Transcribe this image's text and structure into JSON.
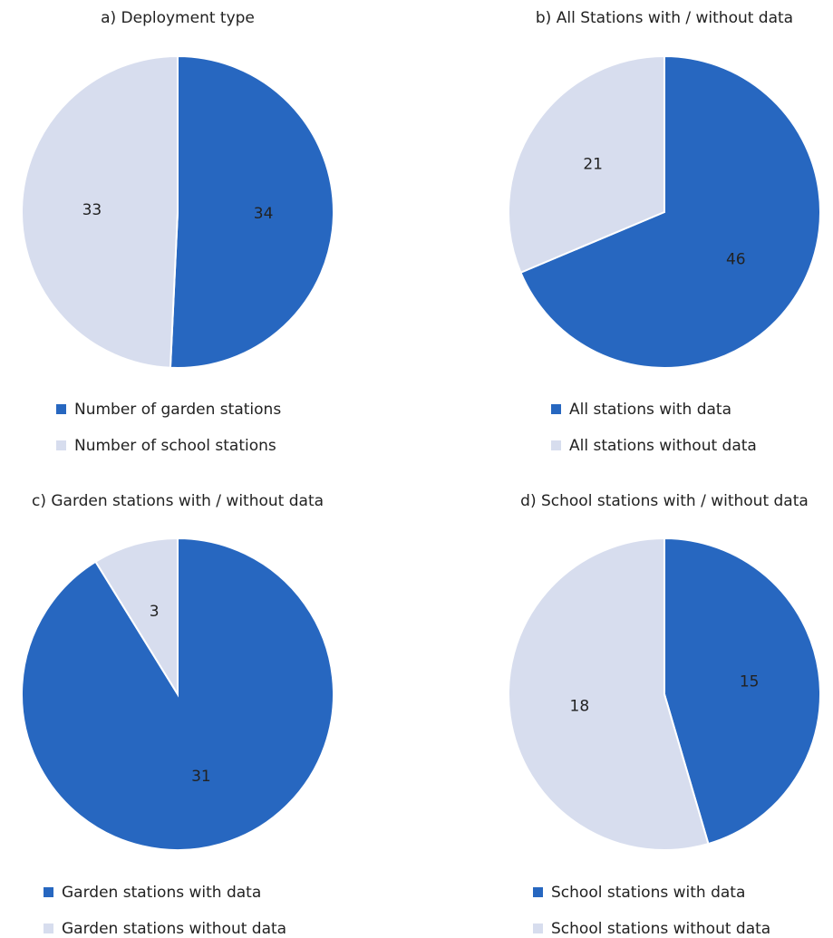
{
  "chart_data": [
    {
      "type": "pie",
      "title": "a) Deployment type",
      "categories": [
        "Number of garden stations",
        "Number of school stations"
      ],
      "values": [
        34,
        33
      ],
      "colors": [
        "#2767c0",
        "#d7ddee"
      ]
    },
    {
      "type": "pie",
      "title": "b) All Stations with / without data",
      "categories": [
        "All stations with data",
        "All stations without data"
      ],
      "values": [
        46,
        21
      ],
      "colors": [
        "#2767c0",
        "#d7ddee"
      ]
    },
    {
      "type": "pie",
      "title": "c) Garden stations with / without data",
      "categories": [
        "Garden stations with data",
        "Garden stations without data"
      ],
      "values": [
        31,
        3
      ],
      "colors": [
        "#2767c0",
        "#d7ddee"
      ]
    },
    {
      "type": "pie",
      "title": "d) School stations with / without data",
      "categories": [
        "School stations with data",
        "School stations without data"
      ],
      "values": [
        15,
        18
      ],
      "colors": [
        "#2767c0",
        "#d7ddee"
      ]
    }
  ]
}
